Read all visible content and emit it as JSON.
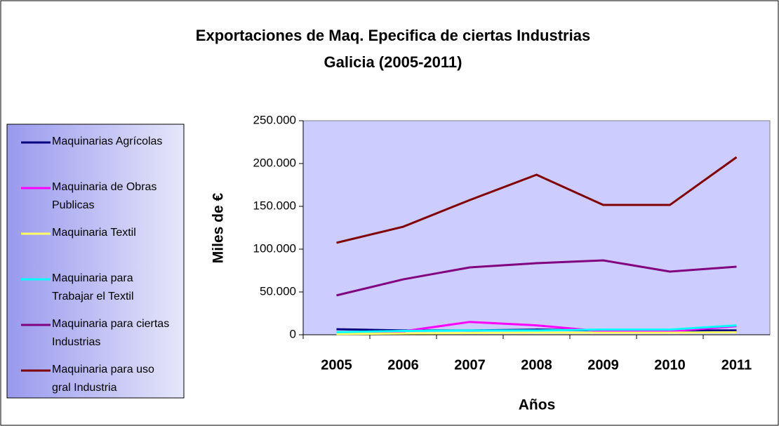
{
  "chart_data": {
    "type": "line",
    "title": "Exportaciones de Maq. Epecifica de ciertas Industrias",
    "subtitle": "Galicia (2005-2011)",
    "x_label": "Años",
    "y_label": "Miles de €",
    "categories": [
      "2005",
      "2006",
      "2007",
      "2008",
      "2009",
      "2010",
      "2011"
    ],
    "ylim": [
      0,
      250000
    ],
    "yticks": [
      0,
      {
        "value": 50000,
        "label": "50.000"
      },
      {
        "value": 100000,
        "label": "100.000"
      },
      {
        "value": 150000,
        "label": "150.000"
      },
      {
        "value": 200000,
        "label": "200.000"
      },
      {
        "value": 250000,
        "label": "250.000"
      }
    ],
    "legend": "left",
    "series": [
      {
        "name": "Maquinarias Agrícolas",
        "color": "#000080",
        "values": [
          6500,
          5000,
          5000,
          6000,
          5000,
          5000,
          5000
        ]
      },
      {
        "name": "Maquinaria de Obras Publicas",
        "color": "#ff00ff",
        "values": [
          2000,
          4000,
          15000,
          11000,
          4000,
          4000,
          10000
        ]
      },
      {
        "name": "Maquinaria Textil",
        "color": "#ffff66",
        "values": [
          1000,
          1500,
          2000,
          2500,
          2500,
          2500,
          3000
        ]
      },
      {
        "name": "Maquinaria para Trabajar el Textil",
        "color": "#00ffff",
        "values": [
          3000,
          4500,
          5000,
          5000,
          6000,
          6000,
          11000
        ]
      },
      {
        "name": "Maquinaria para ciertas Industrias",
        "color": "#800080",
        "values": [
          46000,
          64700,
          78700,
          83600,
          86900,
          73800,
          79500
        ]
      },
      {
        "name": "Maquinaria para uso gral Industria",
        "color": "#800000",
        "values": [
          107400,
          126200,
          157400,
          186900,
          151600,
          151600,
          207400
        ]
      }
    ]
  }
}
